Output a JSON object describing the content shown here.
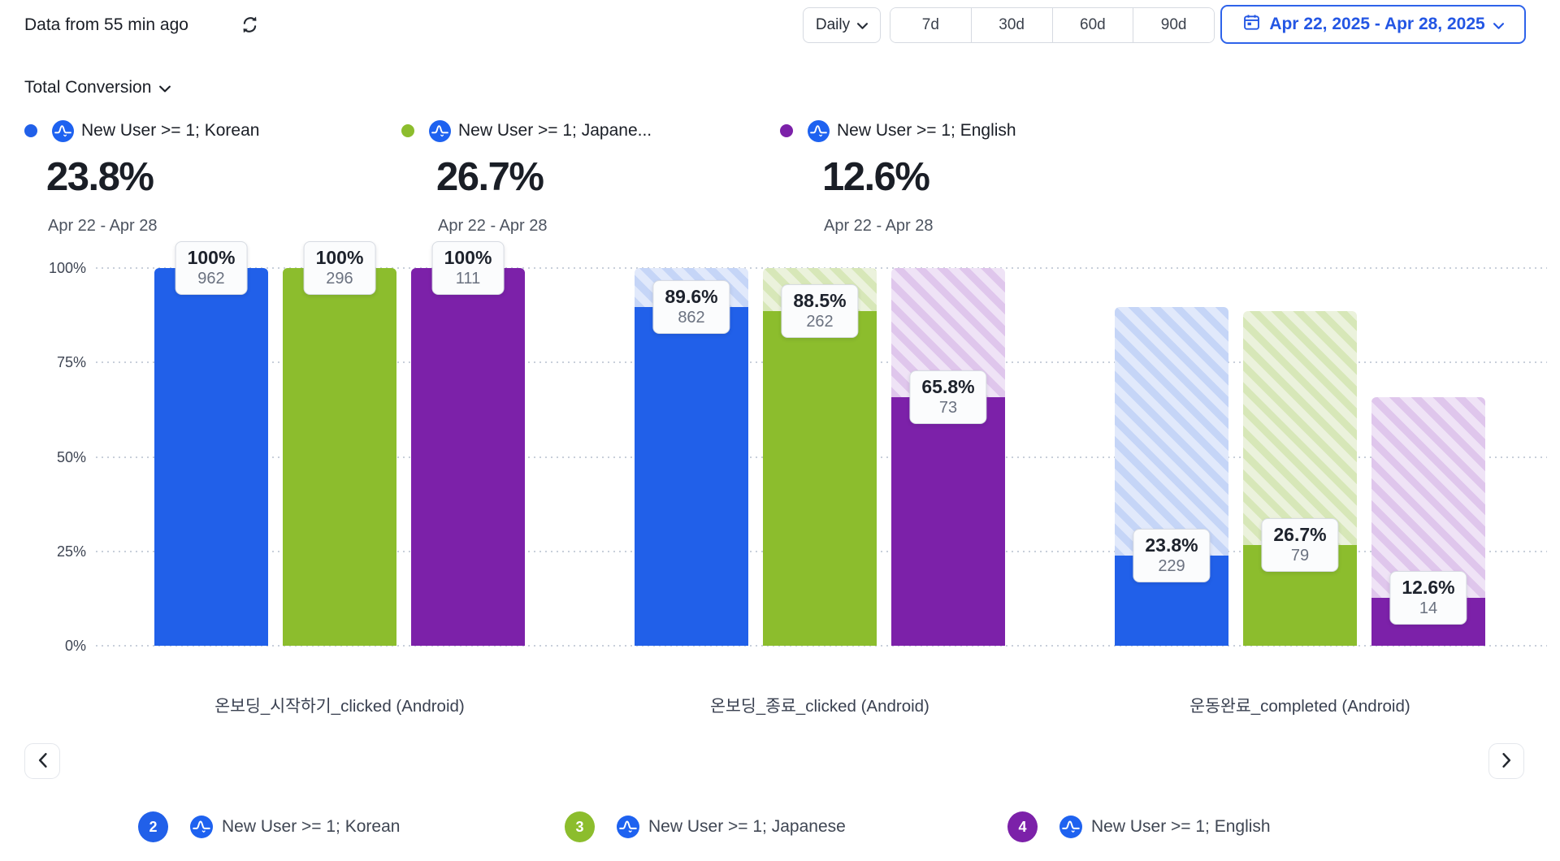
{
  "header": {
    "freshness": "Data from 55 min ago",
    "granularity": "Daily",
    "quick_ranges": [
      "7d",
      "30d",
      "60d",
      "90d"
    ],
    "date_range": "Apr 22, 2025 - Apr 28, 2025"
  },
  "metric": {
    "label": "Total Conversion"
  },
  "summaries": [
    {
      "name": "New User >= 1; Korean",
      "value": "23.8%",
      "range": "Apr 22 - Apr 28",
      "color": "#2160E9"
    },
    {
      "name": "New User >= 1; Japane...",
      "value": "26.7%",
      "range": "Apr 22 - Apr 28",
      "color": "#8CBD2D"
    },
    {
      "name": "New User >= 1; English",
      "value": "12.6%",
      "range": "Apr 22 - Apr 28",
      "color": "#7C21A9"
    }
  ],
  "chart_data": {
    "type": "bar",
    "subtype": "funnel-conversion",
    "title": "Total Conversion",
    "categories": [
      "온보딩_시작하기_clicked (Android)",
      "온보딩_종료_clicked (Android)",
      "운동완료_completed (Android)"
    ],
    "y_ticks": [
      "100%",
      "75%",
      "50%",
      "25%",
      "0%"
    ],
    "ylim": [
      0,
      100
    ],
    "grid": "dotted-horizontal",
    "legend_position": "top",
    "series": [
      {
        "name": "New User >= 1; Korean",
        "color": "#2160E9",
        "hatch_bg": "#e1e9fb",
        "hatch_stripe": "#c5d5f7",
        "values_pct": [
          100,
          89.6,
          23.8
        ],
        "counts": [
          962,
          862,
          229
        ]
      },
      {
        "name": "New User >= 1; Japanese",
        "color": "#8CBD2D",
        "hatch_bg": "#ebf2dc",
        "hatch_stripe": "#d7e7b8",
        "values_pct": [
          100,
          88.5,
          26.7
        ],
        "counts": [
          296,
          262,
          79
        ]
      },
      {
        "name": "New User >= 1; English",
        "color": "#7C21A9",
        "hatch_bg": "#efe3f6",
        "hatch_stripe": "#dfc6ec",
        "values_pct": [
          100,
          65.8,
          12.6
        ],
        "counts": [
          111,
          73,
          14
        ]
      }
    ]
  },
  "bottom_legend": [
    {
      "number": "2",
      "name": "New User >= 1; Korean",
      "color": "#2160E9"
    },
    {
      "number": "3",
      "name": "New User >= 1; Japanese",
      "color": "#8CBD2D"
    },
    {
      "number": "4",
      "name": "New User >= 1; English",
      "color": "#7C21A9"
    }
  ],
  "icons": {
    "refresh": "circular-arrows",
    "calendar": "calendar-grid",
    "chevron_down": "v",
    "chevron_left": "<",
    "chevron_right": ">",
    "amplitude_logo": "blue circle with white waveform A"
  }
}
